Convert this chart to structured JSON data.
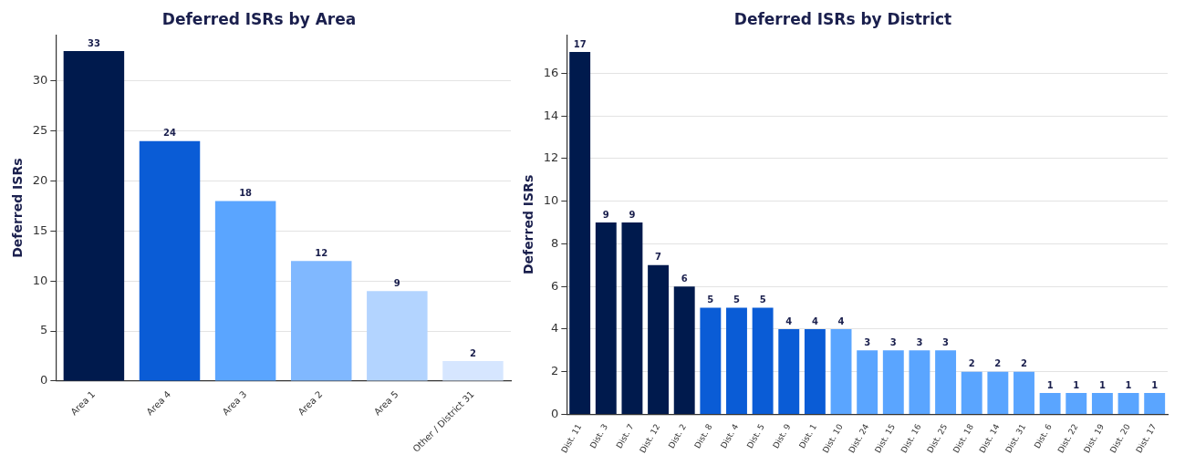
{
  "chart_data": [
    {
      "type": "bar",
      "title": "Deferred ISRs by Area",
      "ylabel": "Deferred ISRs",
      "categories": [
        "Area 1",
        "Area 4",
        "Area 3",
        "Area 2",
        "Area 5",
        "Other / District 31"
      ],
      "values": [
        33,
        24,
        18,
        12,
        9,
        2
      ],
      "colors": [
        "#001a4d",
        "#0a5cd6",
        "#5aa5ff",
        "#80b8ff",
        "#b3d4ff",
        "#d6e6ff"
      ],
      "ylim": [
        0,
        34.6
      ],
      "yticks": [
        0,
        5,
        10,
        15,
        20,
        25,
        30
      ],
      "grid": "y",
      "data_labels": true
    },
    {
      "type": "bar",
      "title": "Deferred ISRs by District",
      "ylabel": "Deferred ISRs",
      "categories": [
        "Dist. 11",
        "Dist. 3",
        "Dist. 7",
        "Dist. 12",
        "Dist. 2",
        "Dist. 8",
        "Dist. 4",
        "Dist. 5",
        "Dist. 9",
        "Dist. 1",
        "Dist. 10",
        "Dist. 24",
        "Dist. 15",
        "Dist. 16",
        "Dist. 25",
        "Dist. 18",
        "Dist. 14",
        "Dist. 31",
        "Dist. 6",
        "Dist. 22",
        "Dist. 19",
        "Dist. 20",
        "Dist. 17"
      ],
      "values": [
        17,
        9,
        9,
        7,
        6,
        5,
        5,
        5,
        4,
        4,
        4,
        3,
        3,
        3,
        3,
        2,
        2,
        2,
        1,
        1,
        1,
        1,
        1
      ],
      "colors": [
        "#001a4d",
        "#001a4d",
        "#001a4d",
        "#001a4d",
        "#001a4d",
        "#0a5cd6",
        "#0a5cd6",
        "#0a5cd6",
        "#0a5cd6",
        "#0a5cd6",
        "#5aa5ff",
        "#5aa5ff",
        "#5aa5ff",
        "#5aa5ff",
        "#5aa5ff",
        "#5aa5ff",
        "#5aa5ff",
        "#5aa5ff",
        "#5aa5ff",
        "#5aa5ff",
        "#5aa5ff",
        "#5aa5ff",
        "#5aa5ff"
      ],
      "ylim": [
        0,
        17.8
      ],
      "yticks": [
        0,
        2,
        4,
        6,
        8,
        10,
        12,
        14,
        16
      ],
      "grid": "y",
      "data_labels": true
    }
  ]
}
